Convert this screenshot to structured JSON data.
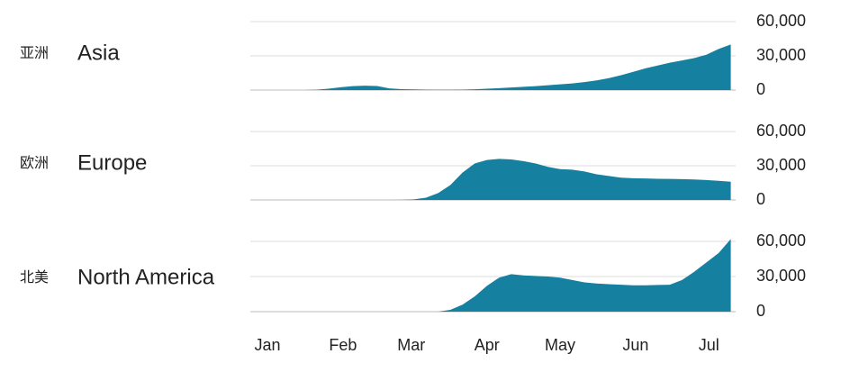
{
  "chart_data": [
    {
      "type": "area",
      "title_zh": "亚洲",
      "title": "Asia",
      "color": "#15809f",
      "grid": true,
      "xlim": [
        -6,
        193
      ],
      "ylim": [
        0,
        60000
      ],
      "yticks": [
        0,
        {
          "value": 30000,
          "label": "30,000"
        },
        {
          "value": 60000,
          "label": "60,000"
        }
      ],
      "x": [
        1,
        6,
        11,
        16,
        21,
        26,
        31,
        36,
        41,
        46,
        51,
        56,
        61,
        66,
        71,
        76,
        81,
        86,
        91,
        96,
        101,
        106,
        111,
        116,
        121,
        126,
        131,
        136,
        141,
        146,
        151,
        156,
        161,
        166,
        171,
        176,
        181,
        186,
        191
      ],
      "values": [
        0,
        0,
        0,
        0,
        300,
        1200,
        2500,
        3500,
        3800,
        3600,
        1500,
        800,
        600,
        400,
        300,
        300,
        400,
        700,
        1200,
        1700,
        2300,
        2900,
        3500,
        4200,
        5000,
        5800,
        7000,
        8500,
        10500,
        13000,
        16000,
        19000,
        21500,
        24000,
        26000,
        28000,
        31000,
        36000,
        40000
      ]
    },
    {
      "type": "area",
      "title_zh": "欧洲",
      "title": "Europe",
      "color": "#15809f",
      "grid": true,
      "xlim": [
        -6,
        193
      ],
      "ylim": [
        0,
        60000
      ],
      "yticks": [
        0,
        {
          "value": 30000,
          "label": "30,000"
        },
        {
          "value": 60000,
          "label": "60,000"
        }
      ],
      "x": [
        1,
        6,
        11,
        16,
        21,
        26,
        31,
        36,
        41,
        46,
        51,
        56,
        61,
        66,
        71,
        76,
        81,
        86,
        91,
        96,
        101,
        106,
        111,
        116,
        121,
        126,
        131,
        136,
        141,
        146,
        151,
        156,
        161,
        166,
        171,
        176,
        181,
        186,
        191
      ],
      "values": [
        0,
        0,
        0,
        0,
        0,
        0,
        0,
        0,
        0,
        0,
        0,
        100,
        500,
        2000,
        6000,
        13000,
        24000,
        32000,
        35000,
        36000,
        35500,
        34000,
        32000,
        29000,
        27000,
        26500,
        25000,
        22500,
        21000,
        19500,
        19000,
        18800,
        18600,
        18500,
        18300,
        18000,
        17500,
        16800,
        16000
      ]
    },
    {
      "type": "area",
      "title_zh": "北美",
      "title": "North America",
      "color": "#15809f",
      "grid": true,
      "xlim": [
        -6,
        193
      ],
      "ylim": [
        0,
        60000
      ],
      "yticks": [
        0,
        {
          "value": 30000,
          "label": "30,000"
        },
        {
          "value": 60000,
          "label": "60,000"
        }
      ],
      "xticks": [
        {
          "value": 1,
          "label": "Jan"
        },
        {
          "value": 32,
          "label": "Feb"
        },
        {
          "value": 60,
          "label": "Mar"
        },
        {
          "value": 91,
          "label": "Apr"
        },
        {
          "value": 121,
          "label": "May"
        },
        {
          "value": 152,
          "label": "Jun"
        },
        {
          "value": 182,
          "label": "Jul"
        }
      ],
      "x": [
        1,
        6,
        11,
        16,
        21,
        26,
        31,
        36,
        41,
        46,
        51,
        56,
        61,
        66,
        71,
        76,
        81,
        86,
        91,
        96,
        101,
        106,
        111,
        116,
        121,
        126,
        131,
        136,
        141,
        146,
        151,
        156,
        161,
        166,
        171,
        176,
        181,
        186,
        191
      ],
      "values": [
        0,
        0,
        0,
        0,
        0,
        0,
        0,
        0,
        0,
        0,
        0,
        0,
        0,
        0,
        0,
        1500,
        6000,
        13000,
        22000,
        29000,
        32000,
        31000,
        30500,
        30000,
        29000,
        27000,
        25000,
        24000,
        23500,
        23000,
        22500,
        22500,
        22800,
        23000,
        27000,
        34000,
        42000,
        50000,
        62000
      ]
    }
  ]
}
